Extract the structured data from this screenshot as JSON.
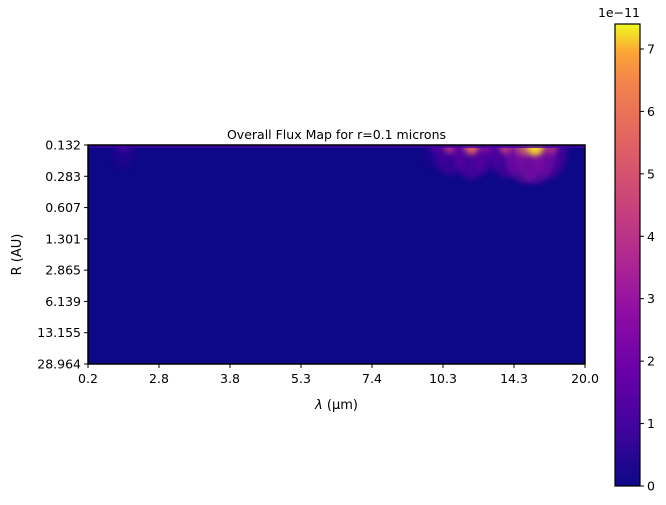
{
  "chart_data": {
    "type": "heatmap",
    "title": "Overall Flux Map for r=0.1 microns",
    "xlabel_var": "λ",
    "xlabel_unit": "(μm)",
    "ylabel": "R (AU)",
    "x_ticks": [
      "0.2",
      "2.8",
      "3.8",
      "5.3",
      "7.4",
      "10.3",
      "14.3",
      "20.0"
    ],
    "y_ticks": [
      "0.132",
      "0.283",
      "0.607",
      "1.301",
      "2.865",
      "6.139",
      "13.155",
      "28.964"
    ],
    "colorbar": {
      "label": "1e−11",
      "ticks": [
        "0",
        "1",
        "2",
        "3",
        "4",
        "5",
        "6",
        "7"
      ],
      "range": [
        0,
        7.4
      ],
      "colormap": "plasma"
    },
    "grid": false,
    "hotspots": [
      {
        "x": 0.5,
        "y": 0.0,
        "value": 1.5
      },
      {
        "x": 4.9,
        "y": 0.02,
        "value": 1.6
      },
      {
        "x": 5.1,
        "y": 0.0,
        "value": 4.0
      },
      {
        "x": 5.4,
        "y": 0.0,
        "value": 5.5
      },
      {
        "x": 5.6,
        "y": 0.02,
        "value": 3.0
      },
      {
        "x": 5.9,
        "y": 0.0,
        "value": 5.0
      },
      {
        "x": 6.15,
        "y": 0.0,
        "value": 7.0
      },
      {
        "x": 6.3,
        "y": 0.0,
        "value": 7.2
      },
      {
        "x": 6.5,
        "y": 0.0,
        "value": 5.0
      },
      {
        "x": 7.6,
        "y": 0.0,
        "value": 1.6
      },
      {
        "x": 9.6,
        "y": 0.0,
        "value": 1.5
      },
      {
        "x": 11.4,
        "y": 0.0,
        "value": 1.6
      }
    ]
  }
}
